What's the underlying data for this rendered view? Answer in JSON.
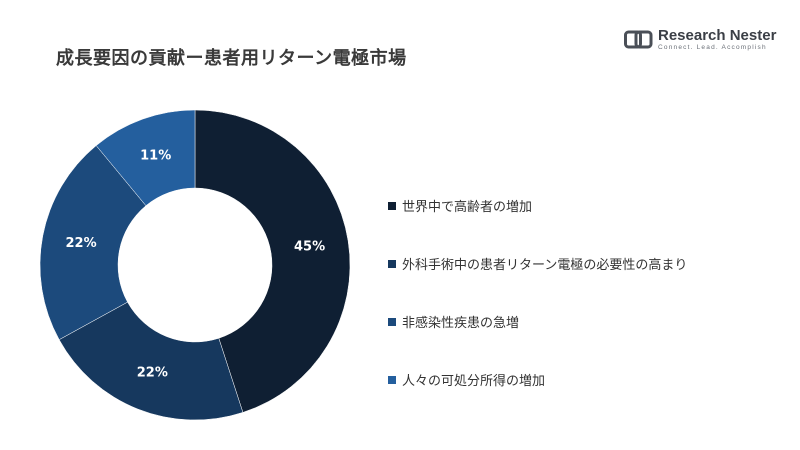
{
  "header": {
    "title": "成長要因の貢献ー患者用リターン電極市場"
  },
  "logo": {
    "name": "Research Nester",
    "tagline": "Connect. Lead. Accomplish"
  },
  "colors": {
    "series": [
      "#0f1f33",
      "#16385e",
      "#1c4a7c",
      "#245f9e"
    ],
    "background": "#ffffff"
  },
  "chart_data": {
    "type": "pie",
    "variant": "donut",
    "categories": [
      "世界中で高齢者の増加",
      "外科手術中の患者リターン電極の必要性の高まり",
      "非感染性疾患の急増",
      "人々の可処分所得の増加"
    ],
    "values": [
      45,
      22,
      22,
      11
    ],
    "value_labels": [
      "45%",
      "22%",
      "22%",
      "11%"
    ],
    "legend_position": "right"
  }
}
